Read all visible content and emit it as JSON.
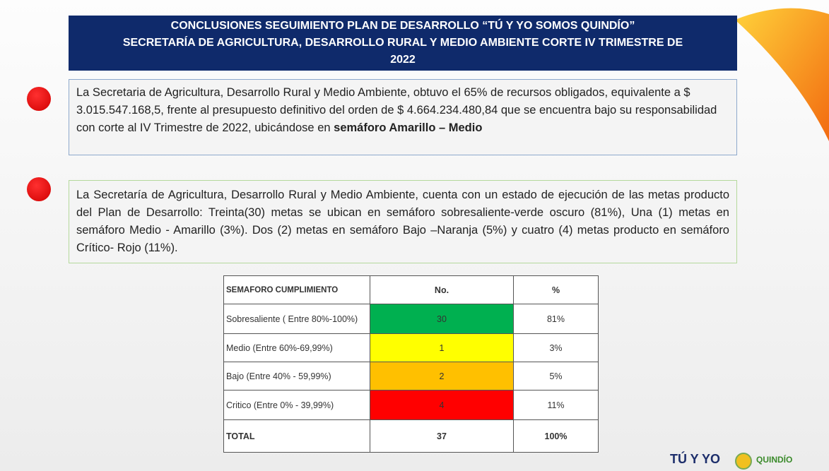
{
  "header": {
    "title_lines": [
      "CONCLUSIONES SEGUIMIENTO PLAN DE DESARROLLO “TÚ Y YO SOMOS QUINDÍO”",
      "SECRETARÍA  DE AGRICULTURA, DESARROLLO RURAL Y MEDIO AMBIENTE  CORTE IV TRIMESTRE DE",
      "2022"
    ]
  },
  "paragraphs": [
    {
      "text": "La Secretaria de Agricultura, Desarrollo Rural y Medio Ambiente, obtuvo el  65% de recursos obligados, equivalente a $ 3.015.547.168,5,  frente al presupuesto definitivo  del orden de $ 4.664.234.480,84  que se encuentra  bajo su responsabilidad con corte al  IV  Trimestre de  2022, ubicándose en",
      "emphasis": "semáforo Amarillo – Medio"
    },
    {
      "text": "La Secretaría de Agricultura, Desarrollo Rural y Medio Ambiente, cuenta con un estado de ejecución de las metas producto del Plan de Desarrollo: Treinta(30) metas  se ubican en semáforo sobresaliente-verde oscuro (81%), Una (1) metas en semáforo Medio - Amarillo (3%). Dos (2) metas en semáforo Bajo –Naranja (5%)  y cuatro (4) metas producto en semáforo Crítico- Rojo  (11%)."
    }
  ],
  "table": {
    "columns": [
      "SEMAFORO CUMPLIMIENTO",
      "No.",
      "%"
    ],
    "rows": [
      {
        "label": "Sobresaliente  ( Entre 80%-100%)",
        "count": 30,
        "percent": "81%",
        "color": "#00b050"
      },
      {
        "label": "Medio (Entre 60%-69,99%)",
        "count": 1,
        "percent": "3%",
        "color": "#ffff00"
      },
      {
        "label": "Bajo (Entre 40% - 59,99%)",
        "count": 2,
        "percent": "5%",
        "color": "#ffc000"
      },
      {
        "label": "Critico (Entre 0% - 39,99%)",
        "count": 4,
        "percent": "11%",
        "color": "#ff0000"
      }
    ],
    "total": {
      "label": "TOTAL",
      "count": 37,
      "percent": "100%"
    }
  },
  "logos": [
    "TÚ Y YO",
    "QUINDÍO"
  ]
}
